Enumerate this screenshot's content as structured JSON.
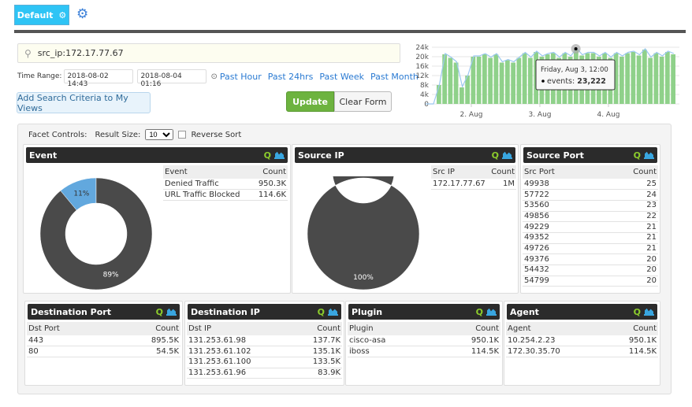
{
  "header": {
    "view_button": "Default",
    "gear_icon": "gear-icon",
    "settings_icon": "gears-icon"
  },
  "search": {
    "value": "src_ip:172.17.77.67",
    "icon": "search-icon"
  },
  "time_range": {
    "label": "Time Range:",
    "start": "2018-08-02 14:43",
    "end": "2018-08-04 01:16",
    "clock_icon": "clock-icon",
    "links": [
      "Past Hour",
      "Past 24hrs",
      "Past Week",
      "Past Month"
    ]
  },
  "buttons": {
    "add_criteria": "Add Search Criteria to My Views",
    "update": "Update",
    "clear": "Clear Form"
  },
  "colors": {
    "accent": "#2ec4f5",
    "update": "#6db33f",
    "bar": "#8fd18a",
    "line": "#9cc8f0",
    "donut_main": "#4a4a4a",
    "donut_second": "#62a8de"
  },
  "chart_data": {
    "type": "bar",
    "yticks": [
      "0",
      "4k",
      "8k",
      "12k",
      "16k",
      "20k",
      "24k"
    ],
    "ylim": [
      0,
      24000
    ],
    "xticks": [
      "2. Aug",
      "3. Aug",
      "4. Aug"
    ],
    "interval": "2 hours",
    "start": "2018-08-01 12:00",
    "values": [
      8000,
      21000,
      19500,
      17500,
      7000,
      12000,
      20000,
      20000,
      21000,
      19500,
      21000,
      17500,
      18500,
      17500,
      19500,
      21500,
      19500,
      22000,
      20000,
      21000,
      21500,
      19500,
      21500,
      20000,
      23222,
      20500,
      21500,
      21500,
      20000,
      21500,
      19500,
      21500,
      20000,
      21500,
      22000,
      20500,
      23000,
      19500,
      21500,
      20000,
      22000,
      21000
    ],
    "tooltip": {
      "title": "Friday, Aug 3, 12:00",
      "series": "events",
      "value": "23,222"
    }
  },
  "facet_controls": {
    "label": "Facet Controls:",
    "result_size_label": "Result Size:",
    "result_size": "10",
    "reverse_sort": "Reverse Sort"
  },
  "facets": {
    "event": {
      "title": "Event",
      "col1": "Event",
      "col2": "Count",
      "rows": [
        [
          "Denied Traffic",
          "950.3K"
        ],
        [
          "URL Traffic Blocked",
          "114.6K"
        ]
      ],
      "donut": [
        {
          "pct": 89,
          "label": "89%"
        },
        {
          "pct": 11,
          "label": "11%"
        }
      ]
    },
    "source_ip": {
      "title": "Source IP",
      "col1": "Src IP",
      "col2": "Count",
      "rows": [
        [
          "172.17.77.67",
          "1M"
        ]
      ],
      "donut": [
        {
          "pct": 100,
          "label": "100%"
        }
      ]
    },
    "source_port": {
      "title": "Source Port",
      "col1": "Src Port",
      "col2": "Count",
      "rows": [
        [
          "49938",
          "25"
        ],
        [
          "57722",
          "24"
        ],
        [
          "53560",
          "23"
        ],
        [
          "49856",
          "22"
        ],
        [
          "49229",
          "21"
        ],
        [
          "49352",
          "21"
        ],
        [
          "49726",
          "21"
        ],
        [
          "49376",
          "20"
        ],
        [
          "54432",
          "20"
        ],
        [
          "54799",
          "20"
        ]
      ]
    },
    "dest_port": {
      "title": "Destination Port",
      "col1": "Dst Port",
      "col2": "Count",
      "rows": [
        [
          "443",
          "895.5K"
        ],
        [
          "80",
          "54.5K"
        ]
      ]
    },
    "dest_ip": {
      "title": "Destination IP",
      "col1": "Dst IP",
      "col2": "Count",
      "rows": [
        [
          "131.253.61.98",
          "137.7K"
        ],
        [
          "131.253.61.102",
          "135.1K"
        ],
        [
          "131.253.61.100",
          "133.5K"
        ],
        [
          "131.253.61.96",
          "83.9K"
        ]
      ]
    },
    "plugin": {
      "title": "Plugin",
      "col1": "Plugin",
      "col2": "Count",
      "rows": [
        [
          "cisco-asa",
          "950.1K"
        ],
        [
          "iboss",
          "114.5K"
        ]
      ]
    },
    "agent": {
      "title": "Agent",
      "col1": "Agent",
      "col2": "Count",
      "rows": [
        [
          "10.254.2.23",
          "950.1K"
        ],
        [
          "172.30.35.70",
          "114.5K"
        ]
      ]
    }
  }
}
